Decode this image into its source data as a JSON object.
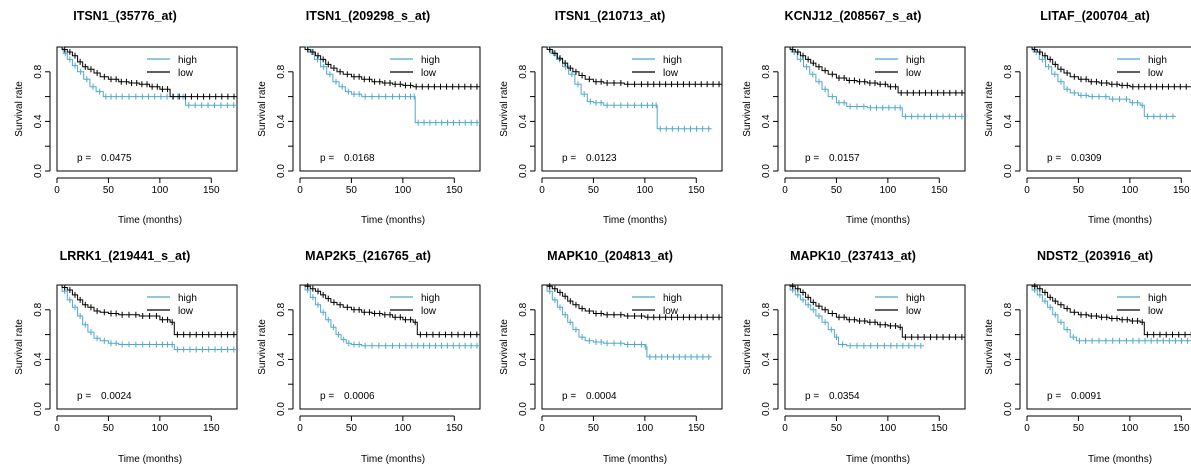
{
  "chart_data": [
    {
      "type": "line",
      "title": "ITSN1_(35776_at)",
      "xlabel": "Time (months)",
      "ylabel": "Survival rate",
      "xlim": [
        0,
        175
      ],
      "ylim": [
        0,
        1
      ],
      "xticks": [
        "0",
        "50",
        "100",
        "150"
      ],
      "yticks": [
        "0.0",
        "0.4",
        "0.8"
      ],
      "legend_position": "top-right",
      "p_label": "p =",
      "p_value": "0.0475",
      "series": [
        {
          "name": "high",
          "color": "#4fa8cc",
          "x": [
            0,
            6,
            10,
            15,
            20,
            26,
            32,
            38,
            45,
            60,
            80,
            110,
            125,
            175
          ],
          "y": [
            1.0,
            0.95,
            0.9,
            0.85,
            0.8,
            0.74,
            0.68,
            0.64,
            0.6,
            0.6,
            0.6,
            0.6,
            0.53,
            0.53
          ]
        },
        {
          "name": "low",
          "color": "#000000",
          "x": [
            0,
            5,
            10,
            15,
            20,
            25,
            30,
            36,
            42,
            50,
            60,
            70,
            80,
            90,
            100,
            110,
            175
          ],
          "y": [
            1.0,
            0.98,
            0.96,
            0.93,
            0.88,
            0.84,
            0.82,
            0.79,
            0.76,
            0.74,
            0.72,
            0.71,
            0.7,
            0.68,
            0.66,
            0.6,
            0.6
          ]
        }
      ]
    },
    {
      "type": "line",
      "title": "ITSN1_(209298_s_at)",
      "xlabel": "Time (months)",
      "ylabel": "Survival rate",
      "xlim": [
        0,
        175
      ],
      "ylim": [
        0,
        1
      ],
      "xticks": [
        "0",
        "50",
        "100",
        "150"
      ],
      "yticks": [
        "0.0",
        "0.4",
        "0.8"
      ],
      "legend_position": "top-right",
      "p_label": "p =",
      "p_value": "0.0168",
      "series": [
        {
          "name": "high",
          "color": "#4fa8cc",
          "x": [
            0,
            8,
            14,
            20,
            26,
            32,
            38,
            44,
            50,
            60,
            80,
            100,
            110,
            112,
            175
          ],
          "y": [
            1.0,
            0.96,
            0.9,
            0.84,
            0.78,
            0.72,
            0.68,
            0.64,
            0.62,
            0.6,
            0.6,
            0.6,
            0.6,
            0.39,
            0.39
          ]
        },
        {
          "name": "low",
          "color": "#000000",
          "x": [
            0,
            5,
            10,
            15,
            20,
            25,
            30,
            36,
            42,
            50,
            60,
            70,
            80,
            90,
            100,
            110,
            175
          ],
          "y": [
            1.0,
            0.98,
            0.96,
            0.93,
            0.9,
            0.86,
            0.83,
            0.8,
            0.78,
            0.76,
            0.74,
            0.72,
            0.71,
            0.7,
            0.69,
            0.68,
            0.68
          ]
        }
      ]
    },
    {
      "type": "line",
      "title": "ITSN1_(210713_at)",
      "xlabel": "Time (months)",
      "ylabel": "Survival rate",
      "xlim": [
        0,
        175
      ],
      "ylim": [
        0,
        1
      ],
      "xticks": [
        "0",
        "50",
        "100",
        "150"
      ],
      "yticks": [
        "0.0",
        "0.4",
        "0.8"
      ],
      "legend_position": "top-right",
      "p_label": "p =",
      "p_value": "0.0123",
      "series": [
        {
          "name": "high",
          "color": "#4fa8cc",
          "x": [
            0,
            8,
            14,
            20,
            26,
            32,
            38,
            44,
            50,
            60,
            80,
            100,
            110,
            112,
            165
          ],
          "y": [
            1.0,
            0.95,
            0.9,
            0.84,
            0.78,
            0.7,
            0.62,
            0.56,
            0.55,
            0.53,
            0.53,
            0.53,
            0.53,
            0.34,
            0.34
          ]
        },
        {
          "name": "low",
          "color": "#000000",
          "x": [
            0,
            5,
            10,
            15,
            20,
            25,
            30,
            36,
            42,
            50,
            60,
            80,
            100,
            175
          ],
          "y": [
            1.0,
            0.98,
            0.95,
            0.91,
            0.87,
            0.83,
            0.8,
            0.77,
            0.74,
            0.72,
            0.71,
            0.7,
            0.7,
            0.7
          ]
        }
      ]
    },
    {
      "type": "line",
      "title": "KCNJ12_(208567_s_at)",
      "xlabel": "Time (months)",
      "ylabel": "Survival rate",
      "xlim": [
        0,
        175
      ],
      "ylim": [
        0,
        1
      ],
      "xticks": [
        "0",
        "50",
        "100",
        "150"
      ],
      "yticks": [
        "0.0",
        "0.4",
        "0.8"
      ],
      "legend_position": "top-right",
      "p_label": "p =",
      "p_value": "0.0157",
      "series": [
        {
          "name": "high",
          "color": "#4fa8cc",
          "x": [
            0,
            6,
            12,
            18,
            24,
            30,
            36,
            42,
            50,
            60,
            80,
            110,
            114,
            175
          ],
          "y": [
            1.0,
            0.96,
            0.9,
            0.84,
            0.78,
            0.72,
            0.66,
            0.6,
            0.55,
            0.52,
            0.51,
            0.51,
            0.44,
            0.44
          ]
        },
        {
          "name": "low",
          "color": "#000000",
          "x": [
            0,
            5,
            10,
            15,
            20,
            25,
            30,
            36,
            42,
            50,
            60,
            70,
            80,
            90,
            100,
            110,
            175
          ],
          "y": [
            1.0,
            0.98,
            0.96,
            0.93,
            0.9,
            0.87,
            0.84,
            0.81,
            0.78,
            0.75,
            0.73,
            0.72,
            0.71,
            0.7,
            0.68,
            0.63,
            0.63
          ]
        }
      ]
    },
    {
      "type": "line",
      "title": "LITAF_(200704_at)",
      "xlabel": "Time (months)",
      "ylabel": "Survival rate",
      "xlim": [
        0,
        175
      ],
      "ylim": [
        0,
        1
      ],
      "xticks": [
        "0",
        "50",
        "100",
        "150"
      ],
      "yticks": [
        "0.0",
        "0.4",
        "0.8"
      ],
      "legend_position": "top-right",
      "p_label": "p =",
      "p_value": "0.0309",
      "series": [
        {
          "name": "high",
          "color": "#4fa8cc",
          "x": [
            0,
            6,
            12,
            18,
            24,
            30,
            36,
            42,
            50,
            60,
            80,
            100,
            110,
            114,
            145
          ],
          "y": [
            1.0,
            0.96,
            0.9,
            0.84,
            0.78,
            0.72,
            0.66,
            0.63,
            0.61,
            0.6,
            0.58,
            0.55,
            0.53,
            0.44,
            0.44
          ]
        },
        {
          "name": "low",
          "color": "#000000",
          "x": [
            0,
            5,
            10,
            15,
            20,
            25,
            30,
            36,
            42,
            50,
            60,
            70,
            80,
            90,
            100,
            175
          ],
          "y": [
            1.0,
            0.98,
            0.96,
            0.93,
            0.9,
            0.86,
            0.82,
            0.79,
            0.76,
            0.74,
            0.72,
            0.71,
            0.7,
            0.69,
            0.68,
            0.68
          ]
        }
      ]
    },
    {
      "type": "line",
      "title": "LRRK1_(219441_s_at)",
      "xlabel": "Time (months)",
      "ylabel": "Survival rate",
      "xlim": [
        0,
        175
      ],
      "ylim": [
        0,
        1
      ],
      "xticks": [
        "0",
        "50",
        "100",
        "150"
      ],
      "yticks": [
        "0.0",
        "0.4",
        "0.8"
      ],
      "legend_position": "top-right",
      "p_label": "p =",
      "p_value": "0.0024",
      "series": [
        {
          "name": "high",
          "color": "#4fa8cc",
          "x": [
            0,
            5,
            10,
            15,
            20,
            25,
            30,
            36,
            42,
            50,
            60,
            80,
            100,
            110,
            114,
            175
          ],
          "y": [
            1.0,
            0.95,
            0.88,
            0.82,
            0.75,
            0.68,
            0.62,
            0.57,
            0.55,
            0.53,
            0.52,
            0.52,
            0.52,
            0.52,
            0.48,
            0.48
          ]
        },
        {
          "name": "low",
          "color": "#000000",
          "x": [
            0,
            5,
            10,
            15,
            20,
            25,
            30,
            36,
            42,
            50,
            60,
            80,
            100,
            110,
            114,
            175
          ],
          "y": [
            1.0,
            0.98,
            0.96,
            0.92,
            0.88,
            0.84,
            0.82,
            0.79,
            0.78,
            0.77,
            0.76,
            0.75,
            0.72,
            0.7,
            0.6,
            0.6
          ]
        }
      ]
    },
    {
      "type": "line",
      "title": "MAP2K5_(216765_at)",
      "xlabel": "Time (months)",
      "ylabel": "Survival rate",
      "xlim": [
        0,
        175
      ],
      "ylim": [
        0,
        1
      ],
      "xticks": [
        "0",
        "50",
        "100",
        "150"
      ],
      "yticks": [
        "0.0",
        "0.4",
        "0.8"
      ],
      "legend_position": "top-right",
      "p_label": "p =",
      "p_value": "0.0006",
      "series": [
        {
          "name": "high",
          "color": "#4fa8cc",
          "x": [
            0,
            5,
            10,
            15,
            20,
            25,
            30,
            35,
            40,
            45,
            50,
            60,
            80,
            100,
            175
          ],
          "y": [
            1.0,
            0.96,
            0.9,
            0.84,
            0.78,
            0.72,
            0.66,
            0.6,
            0.56,
            0.53,
            0.52,
            0.51,
            0.51,
            0.51,
            0.51
          ]
        },
        {
          "name": "low",
          "color": "#000000",
          "x": [
            0,
            5,
            10,
            15,
            20,
            25,
            30,
            36,
            42,
            50,
            60,
            70,
            80,
            90,
            100,
            110,
            114,
            175
          ],
          "y": [
            1.0,
            0.99,
            0.97,
            0.95,
            0.92,
            0.89,
            0.86,
            0.84,
            0.82,
            0.8,
            0.78,
            0.77,
            0.76,
            0.74,
            0.72,
            0.7,
            0.6,
            0.6
          ]
        }
      ]
    },
    {
      "type": "line",
      "title": "MAPK10_(204813_at)",
      "xlabel": "Time (months)",
      "ylabel": "Survival rate",
      "xlim": [
        0,
        175
      ],
      "ylim": [
        0,
        1
      ],
      "xticks": [
        "0",
        "50",
        "100",
        "150"
      ],
      "yticks": [
        "0.0",
        "0.4",
        "0.8"
      ],
      "legend_position": "top-right",
      "p_label": "p =",
      "p_value": "0.0004",
      "series": [
        {
          "name": "high",
          "color": "#4fa8cc",
          "x": [
            0,
            5,
            10,
            15,
            20,
            25,
            30,
            36,
            42,
            50,
            60,
            80,
            100,
            102,
            165
          ],
          "y": [
            1.0,
            0.95,
            0.88,
            0.82,
            0.76,
            0.7,
            0.64,
            0.58,
            0.55,
            0.54,
            0.53,
            0.52,
            0.5,
            0.42,
            0.42
          ]
        },
        {
          "name": "low",
          "color": "#000000",
          "x": [
            0,
            5,
            10,
            15,
            20,
            25,
            30,
            36,
            42,
            50,
            60,
            80,
            100,
            175
          ],
          "y": [
            1.0,
            0.99,
            0.97,
            0.94,
            0.91,
            0.87,
            0.84,
            0.81,
            0.79,
            0.77,
            0.76,
            0.75,
            0.74,
            0.74
          ]
        }
      ]
    },
    {
      "type": "line",
      "title": "MAPK10_(237413_at)",
      "xlabel": "Time (months)",
      "ylabel": "Survival rate",
      "xlim": [
        0,
        175
      ],
      "ylim": [
        0,
        1
      ],
      "xticks": [
        "0",
        "50",
        "100",
        "150"
      ],
      "yticks": [
        "0.0",
        "0.4",
        "0.8"
      ],
      "legend_position": "top-right",
      "p_label": "p =",
      "p_value": "0.0354",
      "series": [
        {
          "name": "high",
          "color": "#4fa8cc",
          "x": [
            0,
            5,
            10,
            15,
            20,
            25,
            30,
            36,
            42,
            48,
            52,
            60,
            80,
            100,
            135
          ],
          "y": [
            1.0,
            0.96,
            0.92,
            0.88,
            0.84,
            0.8,
            0.75,
            0.7,
            0.64,
            0.58,
            0.52,
            0.51,
            0.51,
            0.51,
            0.51
          ]
        },
        {
          "name": "low",
          "color": "#000000",
          "x": [
            0,
            5,
            10,
            15,
            20,
            25,
            30,
            36,
            42,
            50,
            60,
            70,
            80,
            90,
            100,
            110,
            114,
            175
          ],
          "y": [
            1.0,
            0.99,
            0.97,
            0.94,
            0.9,
            0.86,
            0.83,
            0.8,
            0.77,
            0.74,
            0.72,
            0.71,
            0.7,
            0.68,
            0.67,
            0.66,
            0.58,
            0.58
          ]
        }
      ]
    },
    {
      "type": "line",
      "title": "NDST2_(203916_at)",
      "xlabel": "Time (months)",
      "ylabel": "Survival rate",
      "xlim": [
        0,
        175
      ],
      "ylim": [
        0,
        1
      ],
      "xticks": [
        "0",
        "50",
        "100",
        "150"
      ],
      "yticks": [
        "0.0",
        "0.4",
        "0.8"
      ],
      "legend_position": "top-right",
      "p_label": "p =",
      "p_value": "0.0091",
      "series": [
        {
          "name": "high",
          "color": "#4fa8cc",
          "x": [
            0,
            5,
            10,
            15,
            20,
            25,
            30,
            36,
            42,
            48,
            60,
            80,
            100,
            165
          ],
          "y": [
            1.0,
            0.96,
            0.92,
            0.87,
            0.82,
            0.76,
            0.7,
            0.64,
            0.58,
            0.55,
            0.55,
            0.55,
            0.55,
            0.55
          ]
        },
        {
          "name": "low",
          "color": "#000000",
          "x": [
            0,
            5,
            10,
            15,
            20,
            25,
            30,
            36,
            42,
            50,
            60,
            70,
            80,
            90,
            100,
            110,
            114,
            175
          ],
          "y": [
            1.0,
            0.99,
            0.97,
            0.94,
            0.9,
            0.87,
            0.84,
            0.81,
            0.78,
            0.76,
            0.75,
            0.74,
            0.73,
            0.72,
            0.71,
            0.7,
            0.6,
            0.6
          ]
        }
      ]
    }
  ]
}
